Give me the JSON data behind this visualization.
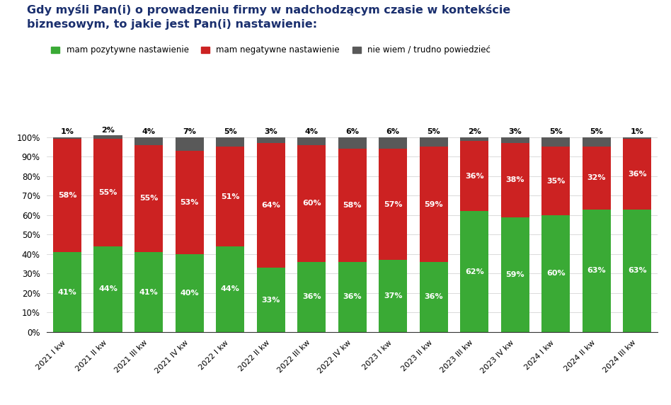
{
  "title_line1": "Gdy myśli Pan(i) o prowadzeniu firmy w nadchodzącym czasie w kontekście",
  "title_line2": "biznesowym, to jakie jest Pan(i) nastawienie:",
  "categories": [
    "2021 I kw",
    "2021 II kw",
    "2021 III kw",
    "2021 IV kw",
    "2022 I kw",
    "2022 II kw",
    "2022 III kw",
    "2022 IV kw",
    "2023 I kw",
    "2023 II kw",
    "2023 III kw",
    "2023 IV kw",
    "2024 I kw",
    "2024 II kw",
    "2024 III kw"
  ],
  "positive": [
    41,
    44,
    41,
    40,
    44,
    33,
    36,
    36,
    37,
    36,
    62,
    59,
    60,
    63,
    63
  ],
  "negative": [
    58,
    55,
    55,
    53,
    51,
    64,
    60,
    58,
    57,
    59,
    36,
    38,
    35,
    32,
    36
  ],
  "unsure": [
    1,
    2,
    4,
    7,
    5,
    3,
    4,
    6,
    6,
    5,
    2,
    3,
    5,
    5,
    1
  ],
  "color_positive": "#3aaa35",
  "color_negative": "#cc2222",
  "color_unsure": "#595959",
  "legend_labels": [
    "mam pozytywne nastawienie",
    "mam negatywne nastawienie",
    "nie wiem / trudno powiedzieć"
  ],
  "ylabel_ticks": [
    "0%",
    "10%",
    "20%",
    "30%",
    "40%",
    "50%",
    "60%",
    "70%",
    "80%",
    "90%",
    "100%"
  ],
  "background_color": "#ffffff",
  "title_color": "#1a2f6e",
  "text_color_white": "#ffffff",
  "text_color_black": "#000000"
}
